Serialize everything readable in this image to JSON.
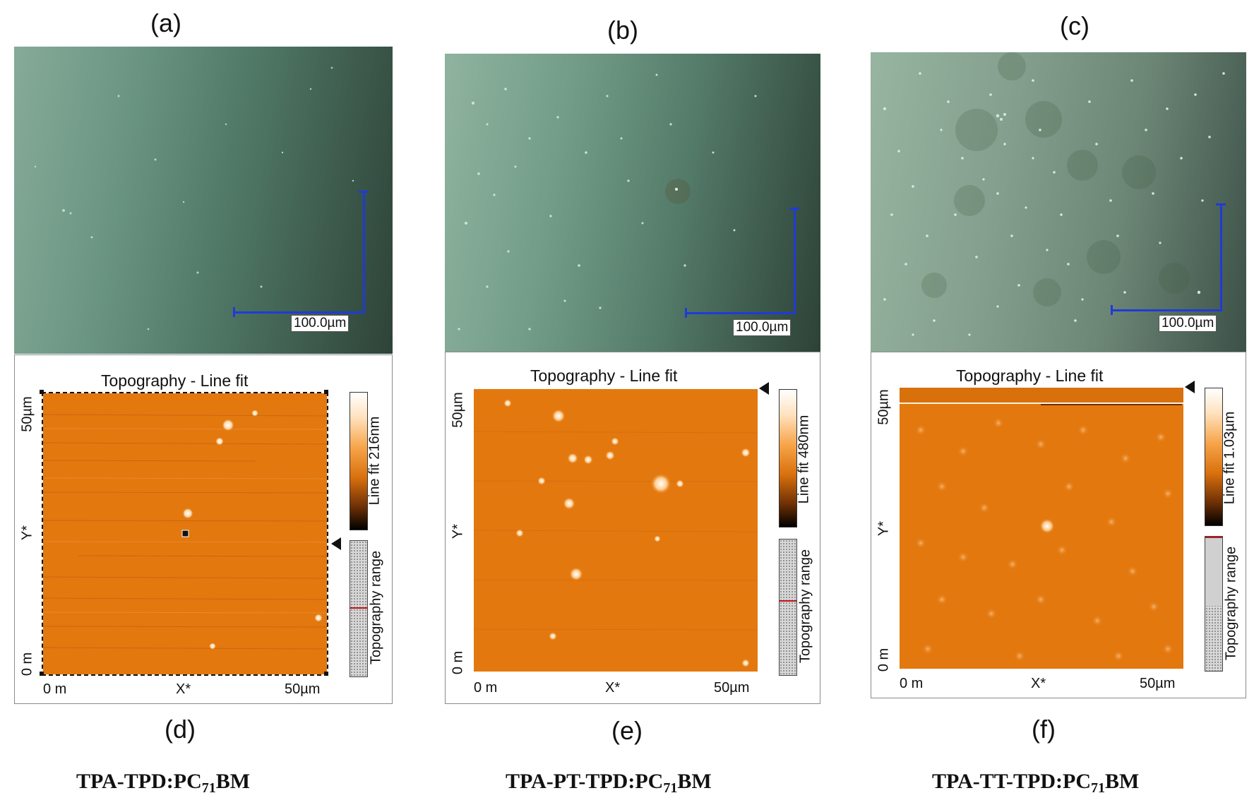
{
  "panels": [
    {
      "letter_top": "(a)",
      "letter_bottom": "(d)",
      "scale_label": "100.0µm",
      "afm_title": "Topography - Line fit",
      "y_top": "50µm",
      "y_mid": "Y*",
      "y_bottom": "0 m",
      "x_left": "0 m",
      "x_mid": "X*",
      "x_right": "50µm",
      "colorbar_label": "Line fit 216nm",
      "range_label": "Topography range",
      "caption_main": "TPA-TPD:PC",
      "caption_sub": "71",
      "caption_end": "BM",
      "range_fraction": 0.5
    },
    {
      "letter_top": "(b)",
      "letter_bottom": "(e)",
      "scale_label": "100.0µm",
      "afm_title": "Topography - Line fit",
      "y_top": "50µm",
      "y_mid": "Y*",
      "y_bottom": "0 m",
      "x_left": "0 m",
      "x_mid": "X*",
      "x_right": "50µm",
      "colorbar_label": "Line fit 480nm",
      "range_label": "Topography range",
      "caption_main": "TPA-PT-TPD:PC",
      "caption_sub": "71",
      "caption_end": "BM",
      "range_fraction": 0.45
    },
    {
      "letter_top": "(c)",
      "letter_bottom": "(f)",
      "scale_label": "100.0µm",
      "afm_title": "Topography - Line fit",
      "y_top": "50µm",
      "y_mid": "Y*",
      "y_bottom": "0 m",
      "x_left": "0 m",
      "x_mid": "X*",
      "x_right": "50µm",
      "colorbar_label": "Line fit 1.03µm",
      "range_label": "Topography range",
      "caption_main": "TPA-TT-TPD:PC",
      "caption_sub": "71",
      "caption_end": "BM",
      "range_fraction": 0.98
    }
  ],
  "colors": {
    "micro_light": "#7fa591",
    "micro_dark": "#2a3c33",
    "afm_orange": "#e3780f",
    "scale_blue": "#1f3bd6"
  }
}
